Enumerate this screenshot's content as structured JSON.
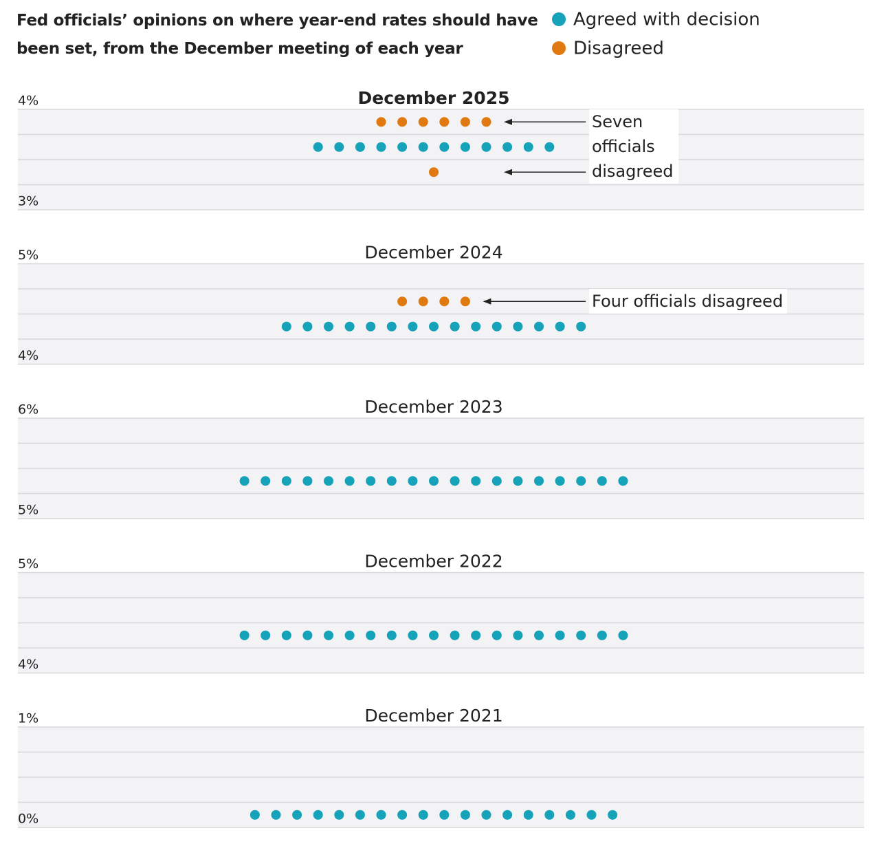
{
  "title": "Fed officials’ opinions on where year-end rates should have been set, from the December meeting of each year",
  "legend": [
    {
      "name": "Agreed with decision",
      "color": "#16a2b8"
    },
    {
      "name": "Disagreed",
      "color": "#e07a10"
    }
  ],
  "chart_data": [
    {
      "type": "dot",
      "title": "December 2025",
      "title_bold": true,
      "ylim": [
        3,
        4
      ],
      "yticks": [
        {
          "value": 4,
          "label": "4%"
        },
        {
          "value": 3,
          "label": "3%"
        }
      ],
      "minor_yticks": [
        3.75,
        3.5,
        3.25
      ],
      "series": [
        {
          "values": [
            3.625,
            3.625,
            3.625,
            3.625,
            3.625,
            3.625,
            3.625,
            3.625,
            3.625,
            3.625,
            3.625,
            3.625
          ]
        },
        {
          "values": [
            3.875,
            3.875,
            3.875,
            3.875,
            3.875,
            3.875,
            3.375
          ]
        }
      ],
      "annotation": "Seven officials disagreed"
    },
    {
      "type": "dot",
      "title": "December 2024",
      "ylim": [
        4,
        5
      ],
      "yticks": [
        {
          "value": 5,
          "label": "5%"
        },
        {
          "value": 4,
          "label": "4%"
        }
      ],
      "minor_yticks": [
        4.75,
        4.5,
        4.25
      ],
      "series": [
        {
          "values": [
            4.375,
            4.375,
            4.375,
            4.375,
            4.375,
            4.375,
            4.375,
            4.375,
            4.375,
            4.375,
            4.375,
            4.375,
            4.375,
            4.375,
            4.375
          ]
        },
        {
          "values": [
            4.625,
            4.625,
            4.625,
            4.625
          ]
        }
      ],
      "annotation": "Four officials disagreed"
    },
    {
      "type": "dot",
      "title": "December 2023",
      "ylim": [
        5,
        6
      ],
      "yticks": [
        {
          "value": 6,
          "label": "6%"
        },
        {
          "value": 5,
          "label": "5%"
        }
      ],
      "minor_yticks": [
        5.75,
        5.5,
        5.25
      ],
      "series": [
        {
          "values": [
            5.375,
            5.375,
            5.375,
            5.375,
            5.375,
            5.375,
            5.375,
            5.375,
            5.375,
            5.375,
            5.375,
            5.375,
            5.375,
            5.375,
            5.375,
            5.375,
            5.375,
            5.375,
            5.375
          ]
        },
        {
          "values": []
        }
      ]
    },
    {
      "type": "dot",
      "title": "December 2022",
      "ylim": [
        4,
        5
      ],
      "yticks": [
        {
          "value": 5,
          "label": "5%"
        },
        {
          "value": 4,
          "label": "4%"
        }
      ],
      "minor_yticks": [
        4.75,
        4.5,
        4.25
      ],
      "series": [
        {
          "values": [
            4.375,
            4.375,
            4.375,
            4.375,
            4.375,
            4.375,
            4.375,
            4.375,
            4.375,
            4.375,
            4.375,
            4.375,
            4.375,
            4.375,
            4.375,
            4.375,
            4.375,
            4.375,
            4.375
          ]
        },
        {
          "values": []
        }
      ]
    },
    {
      "type": "dot",
      "title": "December 2021",
      "ylim": [
        0,
        1
      ],
      "yticks": [
        {
          "value": 1,
          "label": "1%"
        },
        {
          "value": 0,
          "label": "0%"
        }
      ],
      "minor_yticks": [
        0.75,
        0.5,
        0.25
      ],
      "series": [
        {
          "values": [
            0.125,
            0.125,
            0.125,
            0.125,
            0.125,
            0.125,
            0.125,
            0.125,
            0.125,
            0.125,
            0.125,
            0.125,
            0.125,
            0.125,
            0.125,
            0.125,
            0.125,
            0.125
          ]
        },
        {
          "values": []
        }
      ]
    }
  ]
}
